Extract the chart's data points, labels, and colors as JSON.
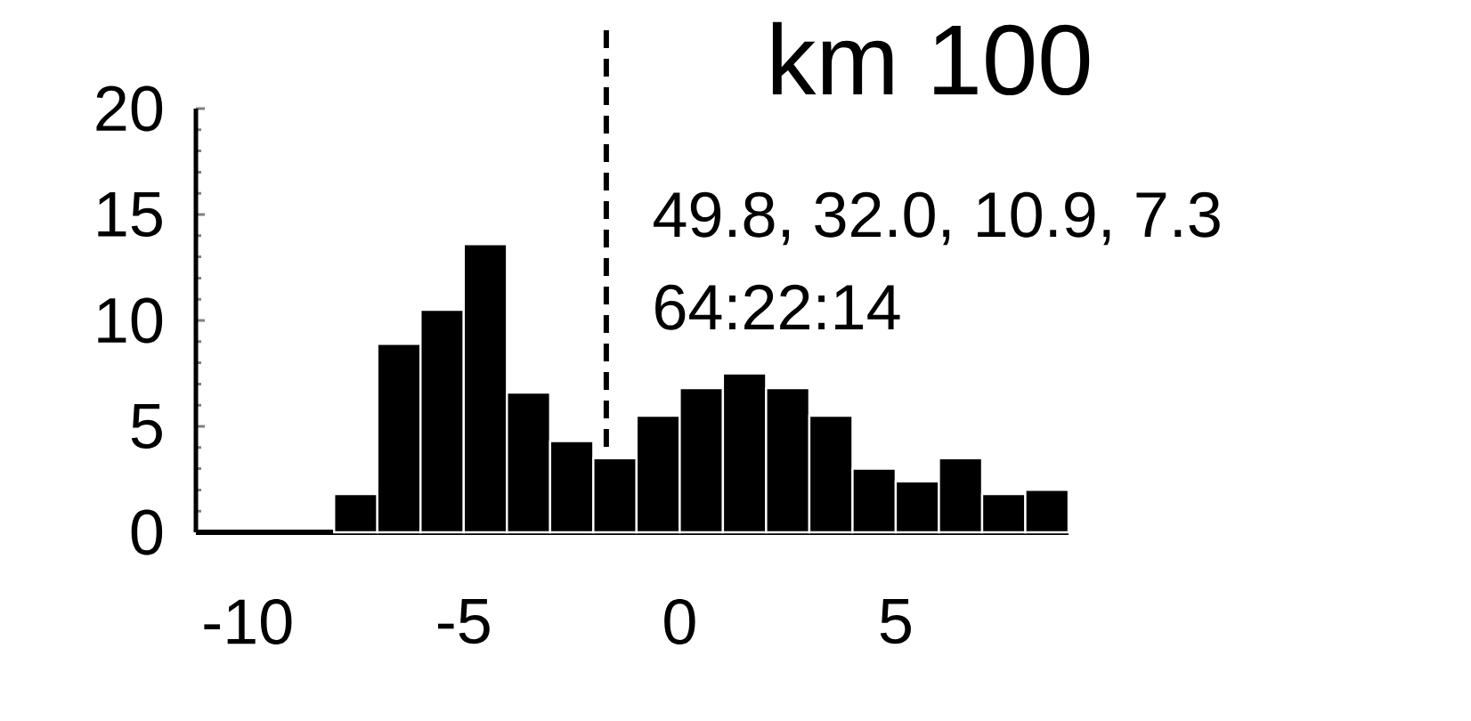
{
  "chart_data": {
    "type": "histogram",
    "title": "km 100",
    "annotations": [
      "49.8, 32.0, 10.9, 7.3",
      "64:22:14"
    ],
    "bins": [
      -8,
      -7,
      -6,
      -5,
      -4,
      -3,
      -2,
      -1,
      0,
      1,
      2,
      3,
      4,
      5,
      6,
      7,
      8,
      9
    ],
    "values": [
      1.8,
      8.9,
      10.5,
      13.6,
      6.6,
      4.3,
      3.5,
      5.5,
      6.8,
      7.5,
      6.8,
      5.5,
      3.0,
      2.4,
      3.5,
      1.8,
      2.0
    ],
    "color": "#000000",
    "xlim": [
      -11.2,
      9
    ],
    "ylim": [
      0,
      20
    ],
    "xticks": [
      -10,
      -5,
      0,
      5
    ],
    "yticks": [
      0,
      5,
      10,
      15,
      20
    ],
    "ref_lines": [
      {
        "axis": "x",
        "value": -1.7,
        "line_style": "dashed"
      }
    ],
    "grid": false
  }
}
